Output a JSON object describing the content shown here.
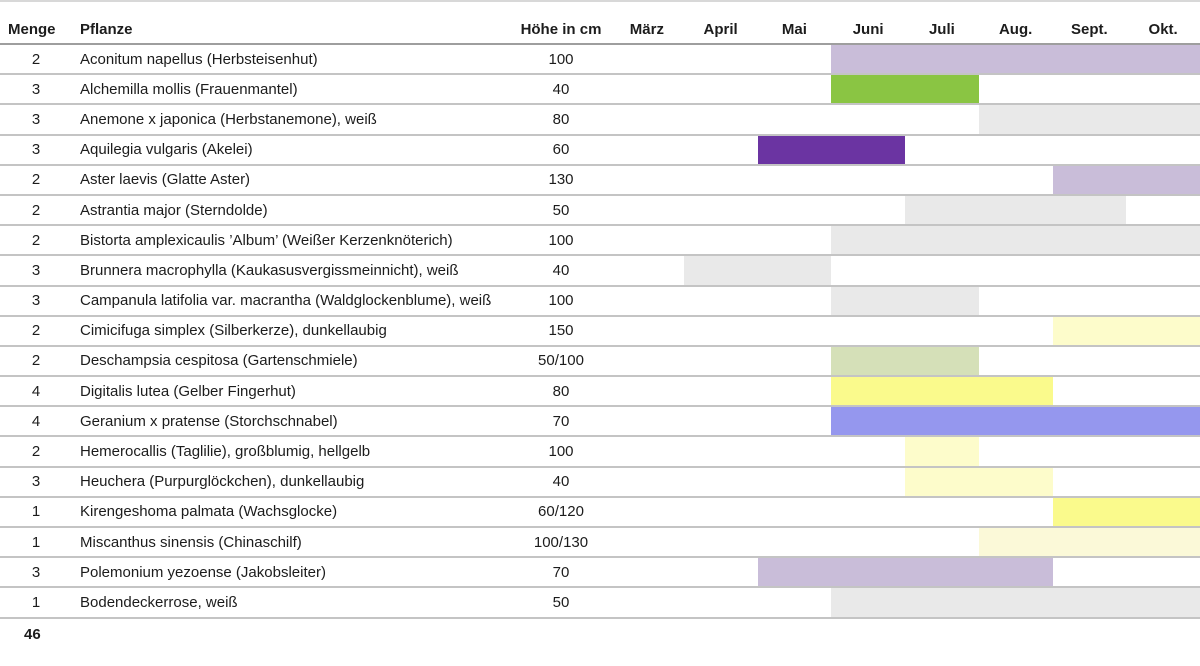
{
  "header": {
    "menge": "Menge",
    "pflanze": "Pflanze",
    "hoehe": "Höhe in cm",
    "months": [
      "März",
      "April",
      "Mai",
      "Juni",
      "Juli",
      "Aug.",
      "Sept.",
      "Okt."
    ]
  },
  "footer": {
    "page_number": "46"
  },
  "colors": {
    "lavender": "#c9bdd9",
    "green": "#8ac543",
    "violet": "#6b34a2",
    "gray": "#e9e9e9",
    "sage": "#d5e0b8",
    "yellow": "#fafa8c",
    "paleyellow": "#fdfccb",
    "cream": "#fbf9d8",
    "periwinkle": "#9597ee"
  },
  "rows": [
    {
      "menge": "2",
      "pflanze": "Aconitum napellus (Herbsteisenhut)",
      "hoehe": "100",
      "bloom": {
        "start_month": "Juni",
        "end_month": "Okt.",
        "start_index": 3,
        "end_index": 7,
        "color": "lavender"
      }
    },
    {
      "menge": "3",
      "pflanze": "Alchemilla mollis (Frauenmantel)",
      "hoehe": "40",
      "bloom": {
        "start_month": "Juni",
        "end_month": "Juli",
        "start_index": 3,
        "end_index": 4,
        "color": "green"
      }
    },
    {
      "menge": "3",
      "pflanze": "Anemone x japonica (Herbstanemone), weiß",
      "hoehe": "80",
      "bloom": {
        "start_month": "Aug.",
        "end_month": "Okt.",
        "start_index": 5,
        "end_index": 7,
        "color": "gray"
      }
    },
    {
      "menge": "3",
      "pflanze": "Aquilegia vulgaris (Akelei)",
      "hoehe": "60",
      "bloom": {
        "start_month": "Mai",
        "end_month": "Juni",
        "start_index": 2,
        "end_index": 3,
        "color": "violet"
      }
    },
    {
      "menge": "2",
      "pflanze": "Aster laevis (Glatte Aster)",
      "hoehe": "130",
      "bloom": {
        "start_month": "Sept.",
        "end_month": "Okt.",
        "start_index": 6,
        "end_index": 7,
        "color": "lavender"
      }
    },
    {
      "menge": "2",
      "pflanze": "Astrantia major (Sterndolde)",
      "hoehe": "50",
      "bloom": {
        "start_month": "Juli",
        "end_month": "Sept.",
        "start_index": 4,
        "end_index": 6,
        "color": "gray"
      }
    },
    {
      "menge": "2",
      "pflanze": "Bistorta amplexicaulis ’Album’ (Weißer Kerzenknöterich)",
      "hoehe": "100",
      "bloom": {
        "start_month": "Juni",
        "end_month": "Okt.",
        "start_index": 3,
        "end_index": 7,
        "color": "gray"
      }
    },
    {
      "menge": "3",
      "pflanze": "Brunnera macrophylla (Kaukasusvergissmeinnicht), weiß",
      "hoehe": "40",
      "bloom": {
        "start_month": "April",
        "end_month": "Mai",
        "start_index": 1,
        "end_index": 2,
        "color": "gray"
      }
    },
    {
      "menge": "3",
      "pflanze": "Campanula latifolia var. macrantha (Waldglockenblume), weiß",
      "hoehe": "100",
      "bloom": {
        "start_month": "Juni",
        "end_month": "Juli",
        "start_index": 3,
        "end_index": 4,
        "color": "gray"
      }
    },
    {
      "menge": "2",
      "pflanze": "Cimicifuga simplex (Silberkerze), dunkellaubig",
      "hoehe": "150",
      "bloom": {
        "start_month": "Sept.",
        "end_month": "Okt.",
        "start_index": 6,
        "end_index": 7,
        "color": "paleyellow"
      }
    },
    {
      "menge": "2",
      "pflanze": "Deschampsia cespitosa (Gartenschmiele)",
      "hoehe": "50/100",
      "bloom": {
        "start_month": "Juni",
        "end_month": "Juli",
        "start_index": 3,
        "end_index": 4,
        "color": "sage"
      }
    },
    {
      "menge": "4",
      "pflanze": "Digitalis lutea (Gelber Fingerhut)",
      "hoehe": "80",
      "bloom": {
        "start_month": "Juni",
        "end_month": "Aug.",
        "start_index": 3,
        "end_index": 5,
        "color": "yellow"
      }
    },
    {
      "menge": "4",
      "pflanze": "Geranium x pratense (Storchschnabel)",
      "hoehe": "70",
      "bloom": {
        "start_month": "Juni",
        "end_month": "Okt.",
        "start_index": 3,
        "end_index": 7,
        "color": "periwinkle"
      }
    },
    {
      "menge": "2",
      "pflanze": "Hemerocallis (Taglilie), großblumig, hellgelb",
      "hoehe": "100",
      "bloom": {
        "start_month": "Juli",
        "end_month": "Juli",
        "start_index": 4,
        "end_index": 4,
        "color": "paleyellow"
      }
    },
    {
      "menge": "3",
      "pflanze": "Heuchera (Purpurglöckchen), dunkellaubig",
      "hoehe": "40",
      "bloom": {
        "start_month": "Juli",
        "end_month": "Aug.",
        "start_index": 4,
        "end_index": 5,
        "color": "paleyellow"
      }
    },
    {
      "menge": "1",
      "pflanze": "Kirengeshoma palmata (Wachsglocke)",
      "hoehe": "60/120",
      "bloom": {
        "start_month": "Sept.",
        "end_month": "Okt.",
        "start_index": 6,
        "end_index": 7,
        "color": "yellow"
      }
    },
    {
      "menge": "1",
      "pflanze": "Miscanthus  sinensis (Chinaschilf)",
      "hoehe": "100/130",
      "bloom": {
        "start_month": "Aug.",
        "end_month": "Okt.",
        "start_index": 5,
        "end_index": 7,
        "color": "cream"
      }
    },
    {
      "menge": "3",
      "pflanze": "Polemonium yezoense (Jakobsleiter)",
      "hoehe": "70",
      "bloom": {
        "start_month": "Mai",
        "end_month": "Aug.",
        "start_index": 2,
        "end_index": 5,
        "color": "lavender"
      }
    },
    {
      "menge": "1",
      "pflanze": "Bodendeckerrose, weiß",
      "hoehe": "50",
      "bloom": {
        "start_month": "Juni",
        "end_month": "Okt.",
        "start_index": 3,
        "end_index": 7,
        "color": "gray"
      }
    }
  ]
}
